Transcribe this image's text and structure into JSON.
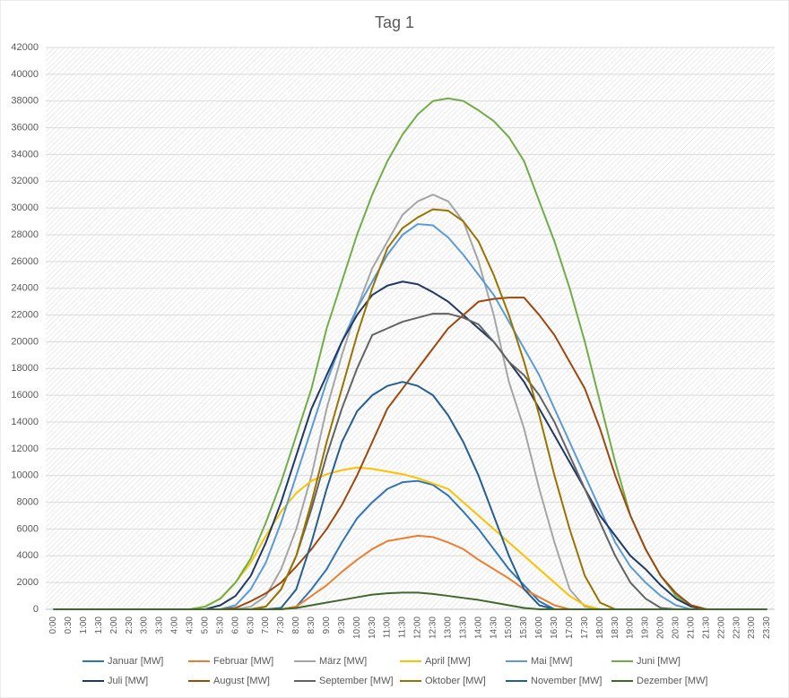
{
  "chart_data": {
    "type": "line",
    "title": "Tag 1",
    "categories": [
      "0:00",
      "0:30",
      "1:00",
      "1:30",
      "2:00",
      "2:30",
      "3:00",
      "3:30",
      "4:00",
      "4:30",
      "5:00",
      "5:30",
      "6:00",
      "6:30",
      "7:00",
      "7:30",
      "8:00",
      "8:30",
      "9:00",
      "9:30",
      "10:00",
      "10:30",
      "11:00",
      "11:30",
      "12:00",
      "12:30",
      "13:00",
      "13:30",
      "14:00",
      "14:30",
      "15:00",
      "15:30",
      "16:00",
      "16:30",
      "17:00",
      "17:30",
      "18:00",
      "18:30",
      "19:00",
      "19:30",
      "20:00",
      "20:30",
      "21:00",
      "21:30",
      "22:00",
      "22:30",
      "23:00",
      "23:30"
    ],
    "ylim": [
      0,
      42000
    ],
    "yticks": [
      0,
      2000,
      4000,
      6000,
      8000,
      10000,
      12000,
      14000,
      16000,
      18000,
      20000,
      22000,
      24000,
      26000,
      28000,
      30000,
      32000,
      34000,
      36000,
      38000,
      40000,
      42000
    ],
    "grid": true,
    "legend": "bottom",
    "series": [
      {
        "name": "Januar [MW]",
        "color": "#2e75b6",
        "values": [
          0,
          0,
          0,
          0,
          0,
          0,
          0,
          0,
          0,
          0,
          0,
          0,
          0,
          0,
          0,
          0,
          200,
          1500,
          3000,
          5000,
          6800,
          8000,
          9000,
          9500,
          9600,
          9300,
          8500,
          7300,
          6000,
          4500,
          3000,
          1800,
          600,
          0,
          0,
          0,
          0,
          0,
          0,
          0,
          0,
          0,
          0,
          0,
          0,
          0,
          0,
          0
        ]
      },
      {
        "name": "Februar [MW]",
        "color": "#ed7d31",
        "values": [
          0,
          0,
          0,
          0,
          0,
          0,
          0,
          0,
          0,
          0,
          0,
          0,
          0,
          0,
          0,
          0,
          200,
          1000,
          1800,
          2800,
          3700,
          4500,
          5100,
          5300,
          5500,
          5400,
          5000,
          4500,
          3700,
          3000,
          2300,
          1500,
          900,
          300,
          0,
          0,
          0,
          0,
          0,
          0,
          0,
          0,
          0,
          0,
          0,
          0,
          0,
          0
        ]
      },
      {
        "name": "März [MW]",
        "color": "#a5a5a5",
        "values": [
          0,
          0,
          0,
          0,
          0,
          0,
          0,
          0,
          0,
          0,
          0,
          0,
          0,
          200,
          1000,
          3000,
          6000,
          10000,
          15000,
          19000,
          22500,
          25500,
          27500,
          29500,
          30500,
          31000,
          30500,
          29000,
          26000,
          22000,
          17000,
          13500,
          9000,
          5000,
          1500,
          200,
          0,
          0,
          0,
          0,
          0,
          0,
          0,
          0,
          0,
          0,
          0,
          0
        ]
      },
      {
        "name": "April [MW]",
        "color": "#ffc000",
        "values": [
          0,
          0,
          0,
          0,
          0,
          0,
          0,
          0,
          0,
          0,
          200,
          800,
          2000,
          3500,
          5500,
          7300,
          8700,
          9600,
          10100,
          10400,
          10600,
          10500,
          10300,
          10100,
          9800,
          9400,
          9000,
          8000,
          7000,
          6000,
          5000,
          4000,
          3000,
          2000,
          1000,
          300,
          0,
          0,
          0,
          0,
          0,
          0,
          0,
          0,
          0,
          0,
          0,
          0
        ]
      },
      {
        "name": "Mai [MW]",
        "color": "#5b9bd5",
        "values": [
          0,
          0,
          0,
          0,
          0,
          0,
          0,
          0,
          0,
          0,
          0,
          0,
          300,
          1500,
          3500,
          6500,
          10000,
          13500,
          17000,
          20000,
          22500,
          24500,
          26500,
          28000,
          28800,
          28700,
          27800,
          26500,
          25000,
          23500,
          21500,
          19500,
          17500,
          15000,
          12500,
          10000,
          7500,
          5000,
          3200,
          2000,
          1000,
          300,
          0,
          0,
          0,
          0,
          0,
          0
        ]
      },
      {
        "name": "Juni [MW]",
        "color": "#70ad47",
        "values": [
          0,
          0,
          0,
          0,
          0,
          0,
          0,
          0,
          0,
          0,
          200,
          800,
          2000,
          3800,
          6500,
          9500,
          13000,
          16500,
          21000,
          24500,
          28000,
          31000,
          33500,
          35500,
          37000,
          38000,
          38200,
          38000,
          37300,
          36500,
          35300,
          33500,
          30500,
          27500,
          24000,
          20000,
          15500,
          11000,
          7000,
          4500,
          2500,
          1000,
          300,
          0,
          0,
          0,
          0,
          0
        ]
      },
      {
        "name": "Juli [MW]",
        "color": "#203864",
        "values": [
          0,
          0,
          0,
          0,
          0,
          0,
          0,
          0,
          0,
          0,
          0,
          300,
          1000,
          2500,
          5000,
          8000,
          11500,
          15000,
          17500,
          20000,
          22000,
          23500,
          24200,
          24500,
          24300,
          23700,
          23000,
          22000,
          21000,
          20000,
          18500,
          17000,
          15000,
          13000,
          11000,
          9000,
          7000,
          5500,
          4000,
          3000,
          1800,
          800,
          200,
          0,
          0,
          0,
          0,
          0
        ]
      },
      {
        "name": "August [MW]",
        "color": "#9e480e",
        "values": [
          0,
          0,
          0,
          0,
          0,
          0,
          0,
          0,
          0,
          0,
          0,
          0,
          100,
          600,
          1200,
          2000,
          3200,
          4500,
          6000,
          7800,
          10000,
          12500,
          15000,
          16500,
          18000,
          19500,
          21000,
          22000,
          23000,
          23200,
          23300,
          23300,
          22000,
          20500,
          18500,
          16500,
          13500,
          10000,
          7000,
          4500,
          2500,
          1200,
          300,
          0,
          0,
          0,
          0,
          0
        ]
      },
      {
        "name": "September [MW]",
        "color": "#636363",
        "values": [
          0,
          0,
          0,
          0,
          0,
          0,
          0,
          0,
          0,
          0,
          0,
          0,
          0,
          0,
          200,
          1500,
          4000,
          7500,
          11500,
          15000,
          18000,
          20500,
          21000,
          21500,
          21800,
          22100,
          22100,
          21800,
          21300,
          20000,
          18500,
          17500,
          16000,
          14000,
          11500,
          9000,
          6500,
          4000,
          2000,
          800,
          100,
          0,
          0,
          0,
          0,
          0,
          0,
          0
        ]
      },
      {
        "name": "Oktober [MW]",
        "color": "#997300",
        "values": [
          0,
          0,
          0,
          0,
          0,
          0,
          0,
          0,
          0,
          0,
          0,
          0,
          0,
          0,
          200,
          1500,
          4000,
          8000,
          12500,
          16500,
          20500,
          24000,
          27000,
          28500,
          29300,
          29900,
          29800,
          29000,
          27500,
          25000,
          22000,
          18500,
          14500,
          10000,
          6000,
          2500,
          500,
          0,
          0,
          0,
          0,
          0,
          0,
          0,
          0,
          0,
          0,
          0
        ]
      },
      {
        "name": "November [MW]",
        "color": "#255e91",
        "values": [
          0,
          0,
          0,
          0,
          0,
          0,
          0,
          0,
          0,
          0,
          0,
          0,
          0,
          0,
          0,
          100,
          1500,
          5000,
          9000,
          12500,
          14800,
          16000,
          16700,
          17000,
          16700,
          16000,
          14500,
          12500,
          10000,
          7000,
          4000,
          1500,
          300,
          0,
          0,
          0,
          0,
          0,
          0,
          0,
          0,
          0,
          0,
          0,
          0,
          0,
          0,
          0
        ]
      },
      {
        "name": "Dezember [MW]",
        "color": "#43682b",
        "values": [
          0,
          0,
          0,
          0,
          0,
          0,
          0,
          0,
          0,
          0,
          0,
          0,
          0,
          0,
          0,
          0,
          100,
          300,
          500,
          700,
          900,
          1100,
          1200,
          1250,
          1250,
          1150,
          1000,
          850,
          700,
          500,
          300,
          100,
          0,
          0,
          0,
          0,
          0,
          0,
          0,
          0,
          0,
          0,
          0,
          0,
          0,
          0,
          0,
          0
        ]
      }
    ]
  }
}
